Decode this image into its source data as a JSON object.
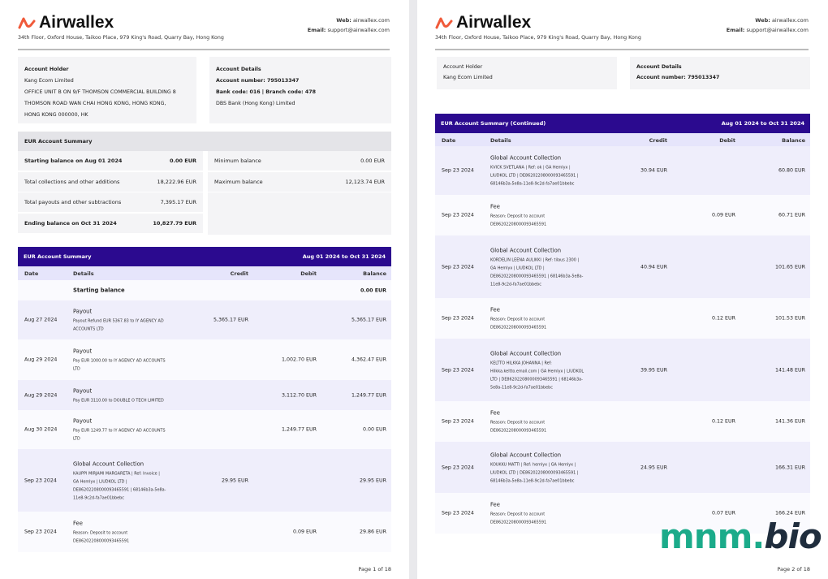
{
  "brand": {
    "name": "Airwallex",
    "logo_color": "#f05a3a",
    "address": "34th Floor, Oxford House, Taikoo Place, 979 King's Road, Quarry Bay, Hong Kong",
    "web_label": "Web:",
    "web": "airwallex.com",
    "email_label": "Email:",
    "email": "support@airwallex.com"
  },
  "account_holder": {
    "title": "Account Holder",
    "name": "Kang Ecom Limited",
    "address_lines": [
      "OFFICE UNIT B ON 9/F THOMSON COMMERCIAL BUILDING 8",
      "THOMSON ROAD WAN CHAI HONG KONG, HONG KONG,",
      "HONG KONG 000000, HK"
    ]
  },
  "account_details": {
    "title": "Account Details",
    "account_number": "Account number: 795013347",
    "codes": "Bank code: 016 | Branch code: 478",
    "bank": "DBS Bank (Hong Kong) Limited"
  },
  "summary": {
    "title": "EUR Account Summary",
    "left": [
      {
        "label": "Starting balance on Aug 01 2024",
        "value": "0.00 EUR",
        "bold": true
      },
      {
        "label": "Total collections and other additions",
        "value": "18,222.96  EUR"
      },
      {
        "label": "Total payouts and other subtractions",
        "value": "7,395.17  EUR"
      },
      {
        "label": "Ending balance on Oct 31 2024",
        "value": "10,827.79 EUR",
        "bold": true
      }
    ],
    "right": [
      {
        "label": "Minimum balance",
        "value": "0.00 EUR"
      },
      {
        "label": "Maximum balance",
        "value": "12,123.74 EUR"
      }
    ]
  },
  "table": {
    "title": "EUR Account Summary",
    "title_continued": "EUR Account Summary (Continued)",
    "period": "Aug 01 2024 to Oct 31 2024",
    "columns": [
      "Date",
      "Details",
      "Credit",
      "Debit",
      "Balance"
    ]
  },
  "page1_rows": [
    {
      "date": "",
      "title": "Starting balance",
      "lines": [],
      "credit": "",
      "debit": "",
      "balance": "0.00 EUR",
      "bold": true
    },
    {
      "date": "Aug 27 2024",
      "title": "Payout",
      "lines": [
        "Payout Refund EUR 5367.83 to IY AGENCY AD",
        "ACCOUNTS LTD"
      ],
      "credit": "5,365.17 EUR",
      "debit": "",
      "balance": "5,365.17 EUR"
    },
    {
      "date": "Aug 29 2024",
      "title": "Payout",
      "lines": [
        "Pay EUR 1000.00 to IY AGENCY AD ACCOUNTS",
        "LTD"
      ],
      "credit": "",
      "debit": "1,002.70 EUR",
      "balance": "4,362.47 EUR"
    },
    {
      "date": "Aug 29 2024",
      "title": "Payout",
      "lines": [
        "Pay EUR 3110.00 to DOUBLE O TECH LIMITED"
      ],
      "credit": "",
      "debit": "3,112.70 EUR",
      "balance": "1,249.77 EUR"
    },
    {
      "date": "Aug 30 2024",
      "title": "Payout",
      "lines": [
        "Pay EUR 1249.77 to IY AGENCY AD ACCOUNTS",
        "LTD"
      ],
      "credit": "",
      "debit": "1,249.77 EUR",
      "balance": "0.00 EUR"
    },
    {
      "date": "Sep 23 2024",
      "title": "Global Account Collection",
      "lines": [
        "KAUPPI MIRJAMI MARGARETA | Ref: Invoice |",
        "GA Hemlyx | LIUDKOL LTD |",
        "DE86202208000093465591 | 68146b3a-5e8a-",
        "11e8-9c2d-fa7ae01bbebc"
      ],
      "credit": "29.95 EUR",
      "debit": "",
      "balance": "29.95 EUR"
    },
    {
      "date": "Sep 23 2024",
      "title": "Fee",
      "lines": [
        "Reason: Deposit to account",
        "DE86202208000093465591"
      ],
      "credit": "",
      "debit": "0.09 EUR",
      "balance": "29.86 EUR"
    }
  ],
  "page2_rows": [
    {
      "date": "Sep 23 2024",
      "title": "Global Account Collection",
      "lines": [
        "KVICK SVETLANA | Ref: ok | GA Hemlyx |",
        "LIUDKOL LTD | DE86202208000093465591 |",
        "68146b3a-5e8a-11e8-9c2d-fa7ae01bbebc"
      ],
      "credit": "30.94 EUR",
      "debit": "",
      "balance": "60.80 EUR"
    },
    {
      "date": "Sep 23 2024",
      "title": "Fee",
      "lines": [
        "Reason: Deposit to account",
        "DE86202208000093465591"
      ],
      "credit": "",
      "debit": "0.09 EUR",
      "balance": "60.71 EUR"
    },
    {
      "date": "Sep 23 2024",
      "title": "Global Account Collection",
      "lines": [
        "KORDELIN LEENA AULIKKI | Ref: tilaus 2300 |",
        "GA Hemlyx | LIUDKOL LTD |",
        "DE86202208000093465591 | 68146b3a-5e8a-",
        "11e8-9c2d-fa7ae01bbebc"
      ],
      "credit": "40.94 EUR",
      "debit": "",
      "balance": "101.65 EUR"
    },
    {
      "date": "Sep 23 2024",
      "title": "Fee",
      "lines": [
        "Reason: Deposit to account",
        "DE86202208000093465591"
      ],
      "credit": "",
      "debit": "0.12 EUR",
      "balance": "101.53 EUR"
    },
    {
      "date": "Sep 23 2024",
      "title": "Global Account Collection",
      "lines": [
        "KELTTO HILKKA JOHANNA | Ref:",
        "Hilkka.keltto.email.com | GA Hemlyx | LIUDKOL",
        "LTD | DE86202208000093465591 | 68146b3a-",
        "5e8a-11e8-9c2d-fa7ae01bbebc"
      ],
      "credit": "39.95 EUR",
      "debit": "",
      "balance": "141.48 EUR"
    },
    {
      "date": "Sep 23 2024",
      "title": "Fee",
      "lines": [
        "Reason: Deposit to account",
        "DE86202208000093465591"
      ],
      "credit": "",
      "debit": "0.12 EUR",
      "balance": "141.36 EUR"
    },
    {
      "date": "Sep 23 2024",
      "title": "Global Account Collection",
      "lines": [
        "KOUKKU MATTI | Ref: hemlyx | GA Hemlyx |",
        "LIUDKOL LTD | DE86202208000093465591 |",
        "68146b3a-5e8a-11e8-9c2d-fa7ae01bbebc"
      ],
      "credit": "24.95 EUR",
      "debit": "",
      "balance": "166.31 EUR"
    },
    {
      "date": "Sep 23 2024",
      "title": "Fee",
      "lines": [
        "Reason: Deposit to account",
        "DE86202208000093465591"
      ],
      "credit": "",
      "debit": "0.07 EUR",
      "balance": "166.24 EUR"
    }
  ],
  "footer": {
    "page1": "Page 1 of 18",
    "page2": "Page 2 of 18"
  },
  "watermark": {
    "part1": "mnm.",
    "part2": "bio"
  }
}
